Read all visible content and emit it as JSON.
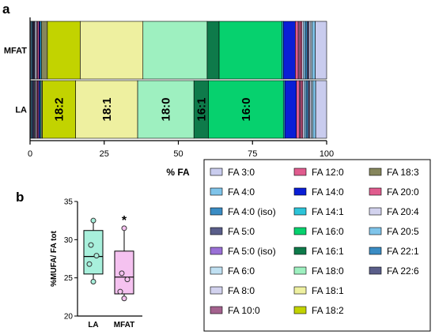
{
  "panel_a_label": "a",
  "panel_b_label": "b",
  "chart_data": [
    {
      "type": "bar",
      "orientation": "horizontal-stacked-percent",
      "categories": [
        "MFAT",
        "LA"
      ],
      "xlabel": "% FA",
      "xlim": [
        0,
        100
      ],
      "xticks": [
        "0",
        "25",
        "50",
        "75",
        "100"
      ],
      "segment_labels": [
        {
          "category": "LA",
          "series": "FA 18:2",
          "text": "18:2"
        },
        {
          "category": "LA",
          "series": "FA 18:1",
          "text": "18:1"
        },
        {
          "category": "LA",
          "series": "FA 18:0",
          "text": "18:0"
        },
        {
          "category": "LA",
          "series": "FA 16:1",
          "text": "16:1"
        },
        {
          "category": "LA",
          "series": "FA 16:0",
          "text": "16:0"
        }
      ],
      "series": [
        {
          "name": "FA 3:0",
          "color": "#c9ccee",
          "values": [
            0.3,
            0.3
          ]
        },
        {
          "name": "FA 4:0",
          "color": "#7fc4ea",
          "values": [
            0.3,
            0.3
          ]
        },
        {
          "name": "FA 4:0 (iso)",
          "color": "#3a8cc4",
          "values": [
            0.3,
            0.3
          ]
        },
        {
          "name": "FA 5:0",
          "color": "#5a5e8a",
          "values": [
            0.3,
            0.3
          ]
        },
        {
          "name": "FA 5:0 (iso)",
          "color": "#9a70d6",
          "values": [
            0.3,
            0.3
          ]
        },
        {
          "name": "FA 6:0",
          "color": "#c0e0f2",
          "values": [
            0.3,
            0.3
          ]
        },
        {
          "name": "FA 8:0",
          "color": "#d2d2ee",
          "values": [
            0.4,
            0.4
          ]
        },
        {
          "name": "FA 10:0",
          "color": "#a4628e",
          "values": [
            0.4,
            0.4
          ]
        },
        {
          "name": "FA 12:0",
          "color": "#e05c8e",
          "values": [
            0.4,
            0.4
          ]
        },
        {
          "name": "FA 14:0",
          "color": "#0a1ed6",
          "values": [
            0.4,
            0.4
          ]
        },
        {
          "name": "FA 14:1",
          "color": "#2cc4d8",
          "values": [
            0.4,
            0.4
          ]
        },
        {
          "name": "FA 18:3",
          "color": "#86865c",
          "values": [
            2.0,
            0.5
          ]
        },
        {
          "name": "FA 18:2",
          "color": "#c2d300",
          "values": [
            11.0,
            11.5
          ]
        },
        {
          "name": "FA 18:1",
          "color": "#eef0a0",
          "values": [
            21.0,
            21.5
          ]
        },
        {
          "name": "FA 18:0",
          "color": "#9ef0c0",
          "values": [
            21.5,
            19.5
          ]
        },
        {
          "name": "FA 16:1",
          "color": "#0e7a4a",
          "values": [
            4.0,
            5.0
          ]
        },
        {
          "name": "FA 16:0",
          "color": "#06d16e",
          "values": [
            21.0,
            26.0
          ]
        },
        {
          "name": "FA 14:1",
          "color": "#2cc4d8",
          "values": [
            0.5,
            0.5
          ]
        },
        {
          "name": "FA 14:0",
          "color": "#0a1ed6",
          "values": [
            4.0,
            4.0
          ]
        },
        {
          "name": "FA 12:0",
          "color": "#e05c8e",
          "values": [
            1.0,
            1.0
          ]
        },
        {
          "name": "FA 10:0",
          "color": "#a4628e",
          "values": [
            0.6,
            0.6
          ]
        },
        {
          "name": "FA 20:0",
          "color": "#e05c8e",
          "values": [
            0.6,
            0.6
          ]
        },
        {
          "name": "FA 20:4",
          "color": "#d2d2ee",
          "values": [
            0.6,
            0.6
          ]
        },
        {
          "name": "FA 20:5",
          "color": "#7fc4ea",
          "values": [
            0.6,
            0.6
          ]
        },
        {
          "name": "FA 22:1",
          "color": "#3a8cc4",
          "values": [
            0.6,
            0.6
          ]
        },
        {
          "name": "FA 22:6",
          "color": "#5a5e8a",
          "values": [
            0.6,
            0.6
          ]
        },
        {
          "name": "FA 8:0",
          "color": "#d2d2ee",
          "values": [
            0.6,
            0.6
          ]
        },
        {
          "name": "FA 6:0",
          "color": "#c0e0f2",
          "values": [
            0.5,
            0.5
          ]
        },
        {
          "name": "FA 4:0",
          "color": "#7fc4ea",
          "values": [
            1.0,
            1.0
          ]
        },
        {
          "name": "FA 3:0",
          "color": "#c9ccee",
          "values": [
            3.8,
            3.8
          ]
        }
      ],
      "legend": {
        "placement": "bottom-right",
        "columns": [
          [
            {
              "name": "FA 3:0",
              "color": "#c9ccee"
            },
            {
              "name": "FA 4:0",
              "color": "#7fc4ea"
            },
            {
              "name": "FA 4:0 (iso)",
              "color": "#3a8cc4"
            },
            {
              "name": "FA 5:0",
              "color": "#5a5e8a"
            },
            {
              "name": "FA 5:0 (iso)",
              "color": "#9a70d6"
            },
            {
              "name": "FA 6:0",
              "color": "#c0e0f2"
            },
            {
              "name": "FA 8:0",
              "color": "#d2d2ee"
            },
            {
              "name": "FA 10:0",
              "color": "#a4628e"
            }
          ],
          [
            {
              "name": "FA 12:0",
              "color": "#e05c8e"
            },
            {
              "name": "FA 14:0",
              "color": "#0a1ed6"
            },
            {
              "name": "FA 14:1",
              "color": "#2cc4d8"
            },
            {
              "name": "FA 16:0",
              "color": "#06d16e"
            },
            {
              "name": "FA 16:1",
              "color": "#0e7a4a"
            },
            {
              "name": "FA 18:0",
              "color": "#9ef0c0"
            },
            {
              "name": "FA 18:1",
              "color": "#eef0a0"
            },
            {
              "name": "FA 18:2",
              "color": "#c2d300"
            }
          ],
          [
            {
              "name": "FA 18:3",
              "color": "#86865c"
            },
            {
              "name": "FA 20:0",
              "color": "#e05c8e"
            },
            {
              "name": "FA 20:4",
              "color": "#d2d2ee"
            },
            {
              "name": "FA 20:5",
              "color": "#7fc4ea"
            },
            {
              "name": "FA 22:1",
              "color": "#3a8cc4"
            },
            {
              "name": "FA 22:6",
              "color": "#5a5e8a"
            }
          ]
        ]
      }
    },
    {
      "type": "box",
      "categories": [
        "LA",
        "MFAT"
      ],
      "ylabel": "%MUFA/ FA tot",
      "ylim": [
        20,
        35
      ],
      "yticks": [
        20,
        25,
        30,
        35
      ],
      "significance": [
        {
          "category": "MFAT",
          "text": "*"
        }
      ],
      "boxes": [
        {
          "name": "LA",
          "color": "#a8f0dc",
          "min": 24.5,
          "q1": 25.5,
          "median": 27.8,
          "q3": 31.2,
          "max": 32.5,
          "points": [
            24.5,
            26.8,
            27.9,
            29.3,
            32.5
          ]
        },
        {
          "name": "MFAT",
          "color": "#f5c2f0",
          "min": 22.3,
          "q1": 22.9,
          "median": 25.1,
          "q3": 28.5,
          "max": 31.5,
          "points": [
            22.3,
            23.2,
            24.8,
            25.6,
            31.5
          ]
        }
      ]
    }
  ]
}
